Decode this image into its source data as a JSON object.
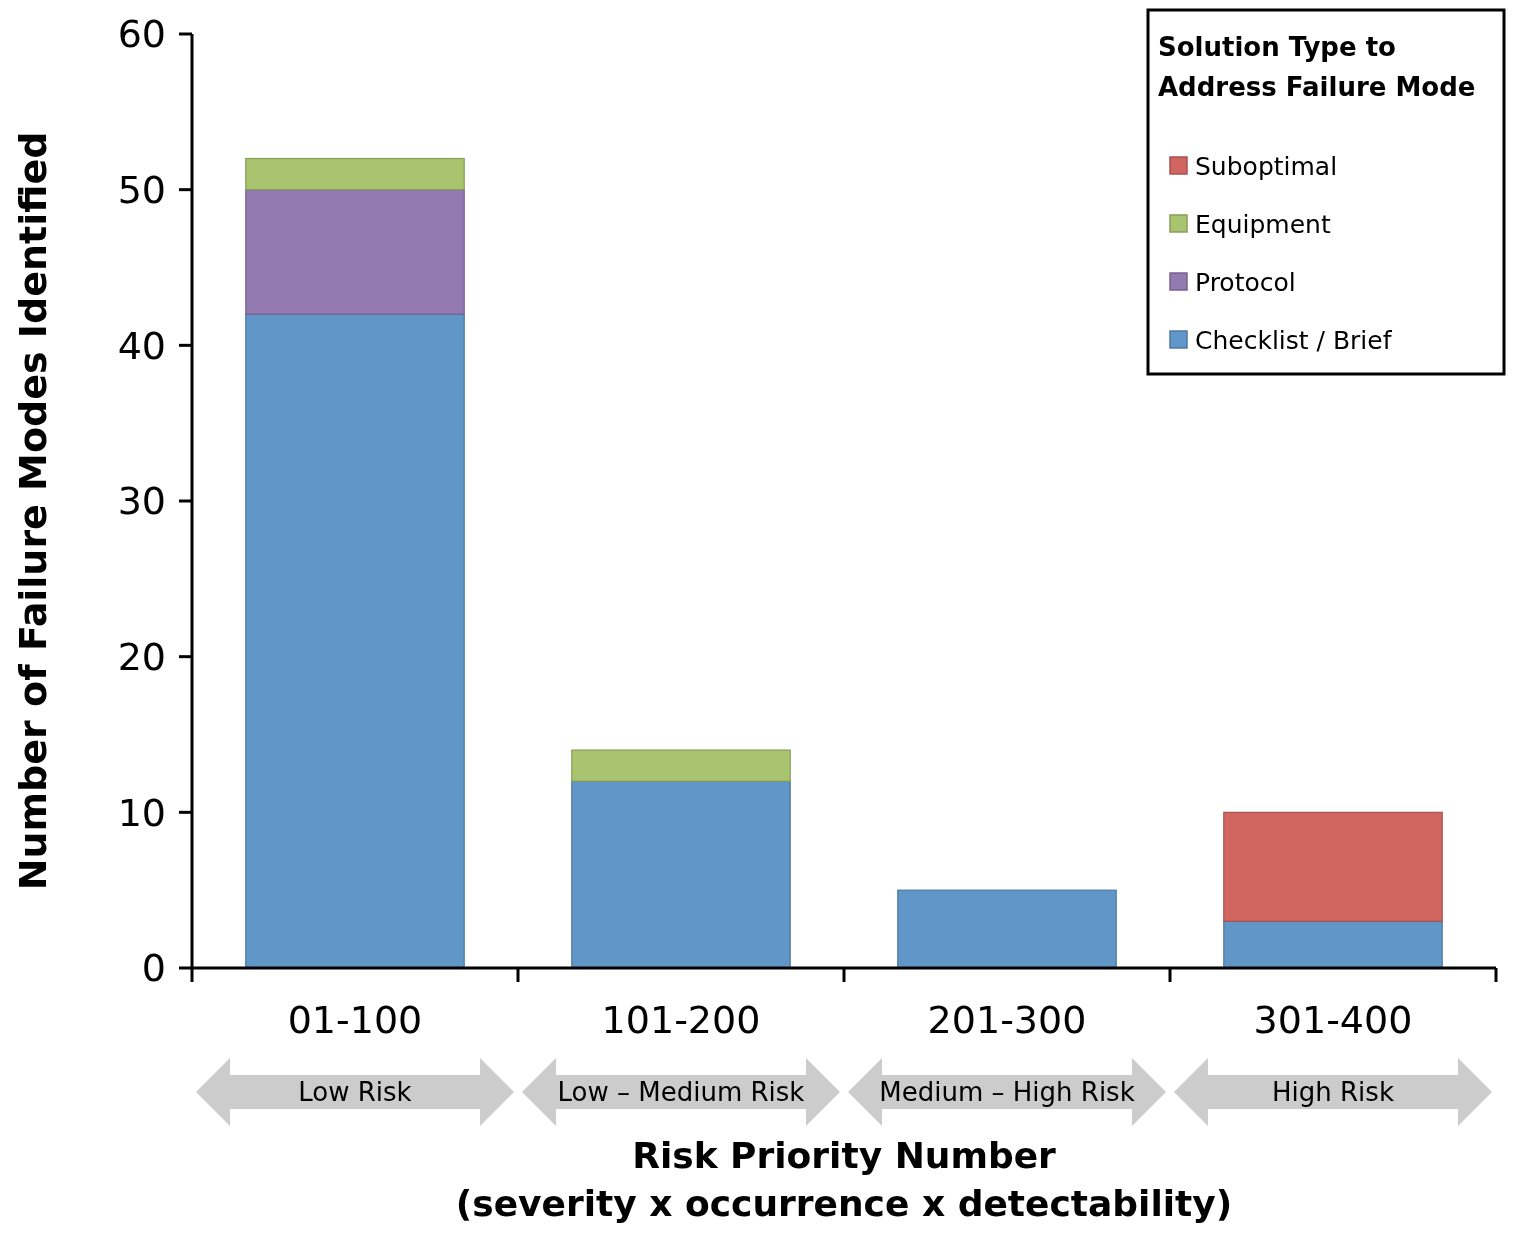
{
  "chart_data": {
    "type": "bar",
    "stacked": true,
    "categories": [
      "01-100",
      "101-200",
      "201-300",
      "301-400"
    ],
    "series": [
      {
        "name": "Checklist / Brief",
        "color": "#6096c8",
        "values": [
          42,
          12,
          5,
          3
        ]
      },
      {
        "name": "Protocol",
        "color": "#937ab1",
        "values": [
          8,
          0,
          0,
          0
        ]
      },
      {
        "name": "Equipment",
        "color": "#a9c46e",
        "values": [
          2,
          2,
          0,
          0
        ]
      },
      {
        "name": "Suboptimal",
        "color": "#d0665f",
        "values": [
          0,
          0,
          0,
          7
        ]
      }
    ],
    "ylim": [
      0,
      60
    ],
    "yticks": [
      0,
      10,
      20,
      30,
      40,
      50,
      60
    ],
    "grid": false,
    "legend": "top right",
    "legend_title": "Solution Type to\nAddress Failure Mode",
    "ylabel": "Number of Failure Modes Identified",
    "xlabel": "Risk Priority Number\n(severity x occurrence x detectability)",
    "annotations": [
      "Low Risk",
      "Low – Medium Risk",
      "Medium – High Risk",
      "High Risk"
    ]
  }
}
